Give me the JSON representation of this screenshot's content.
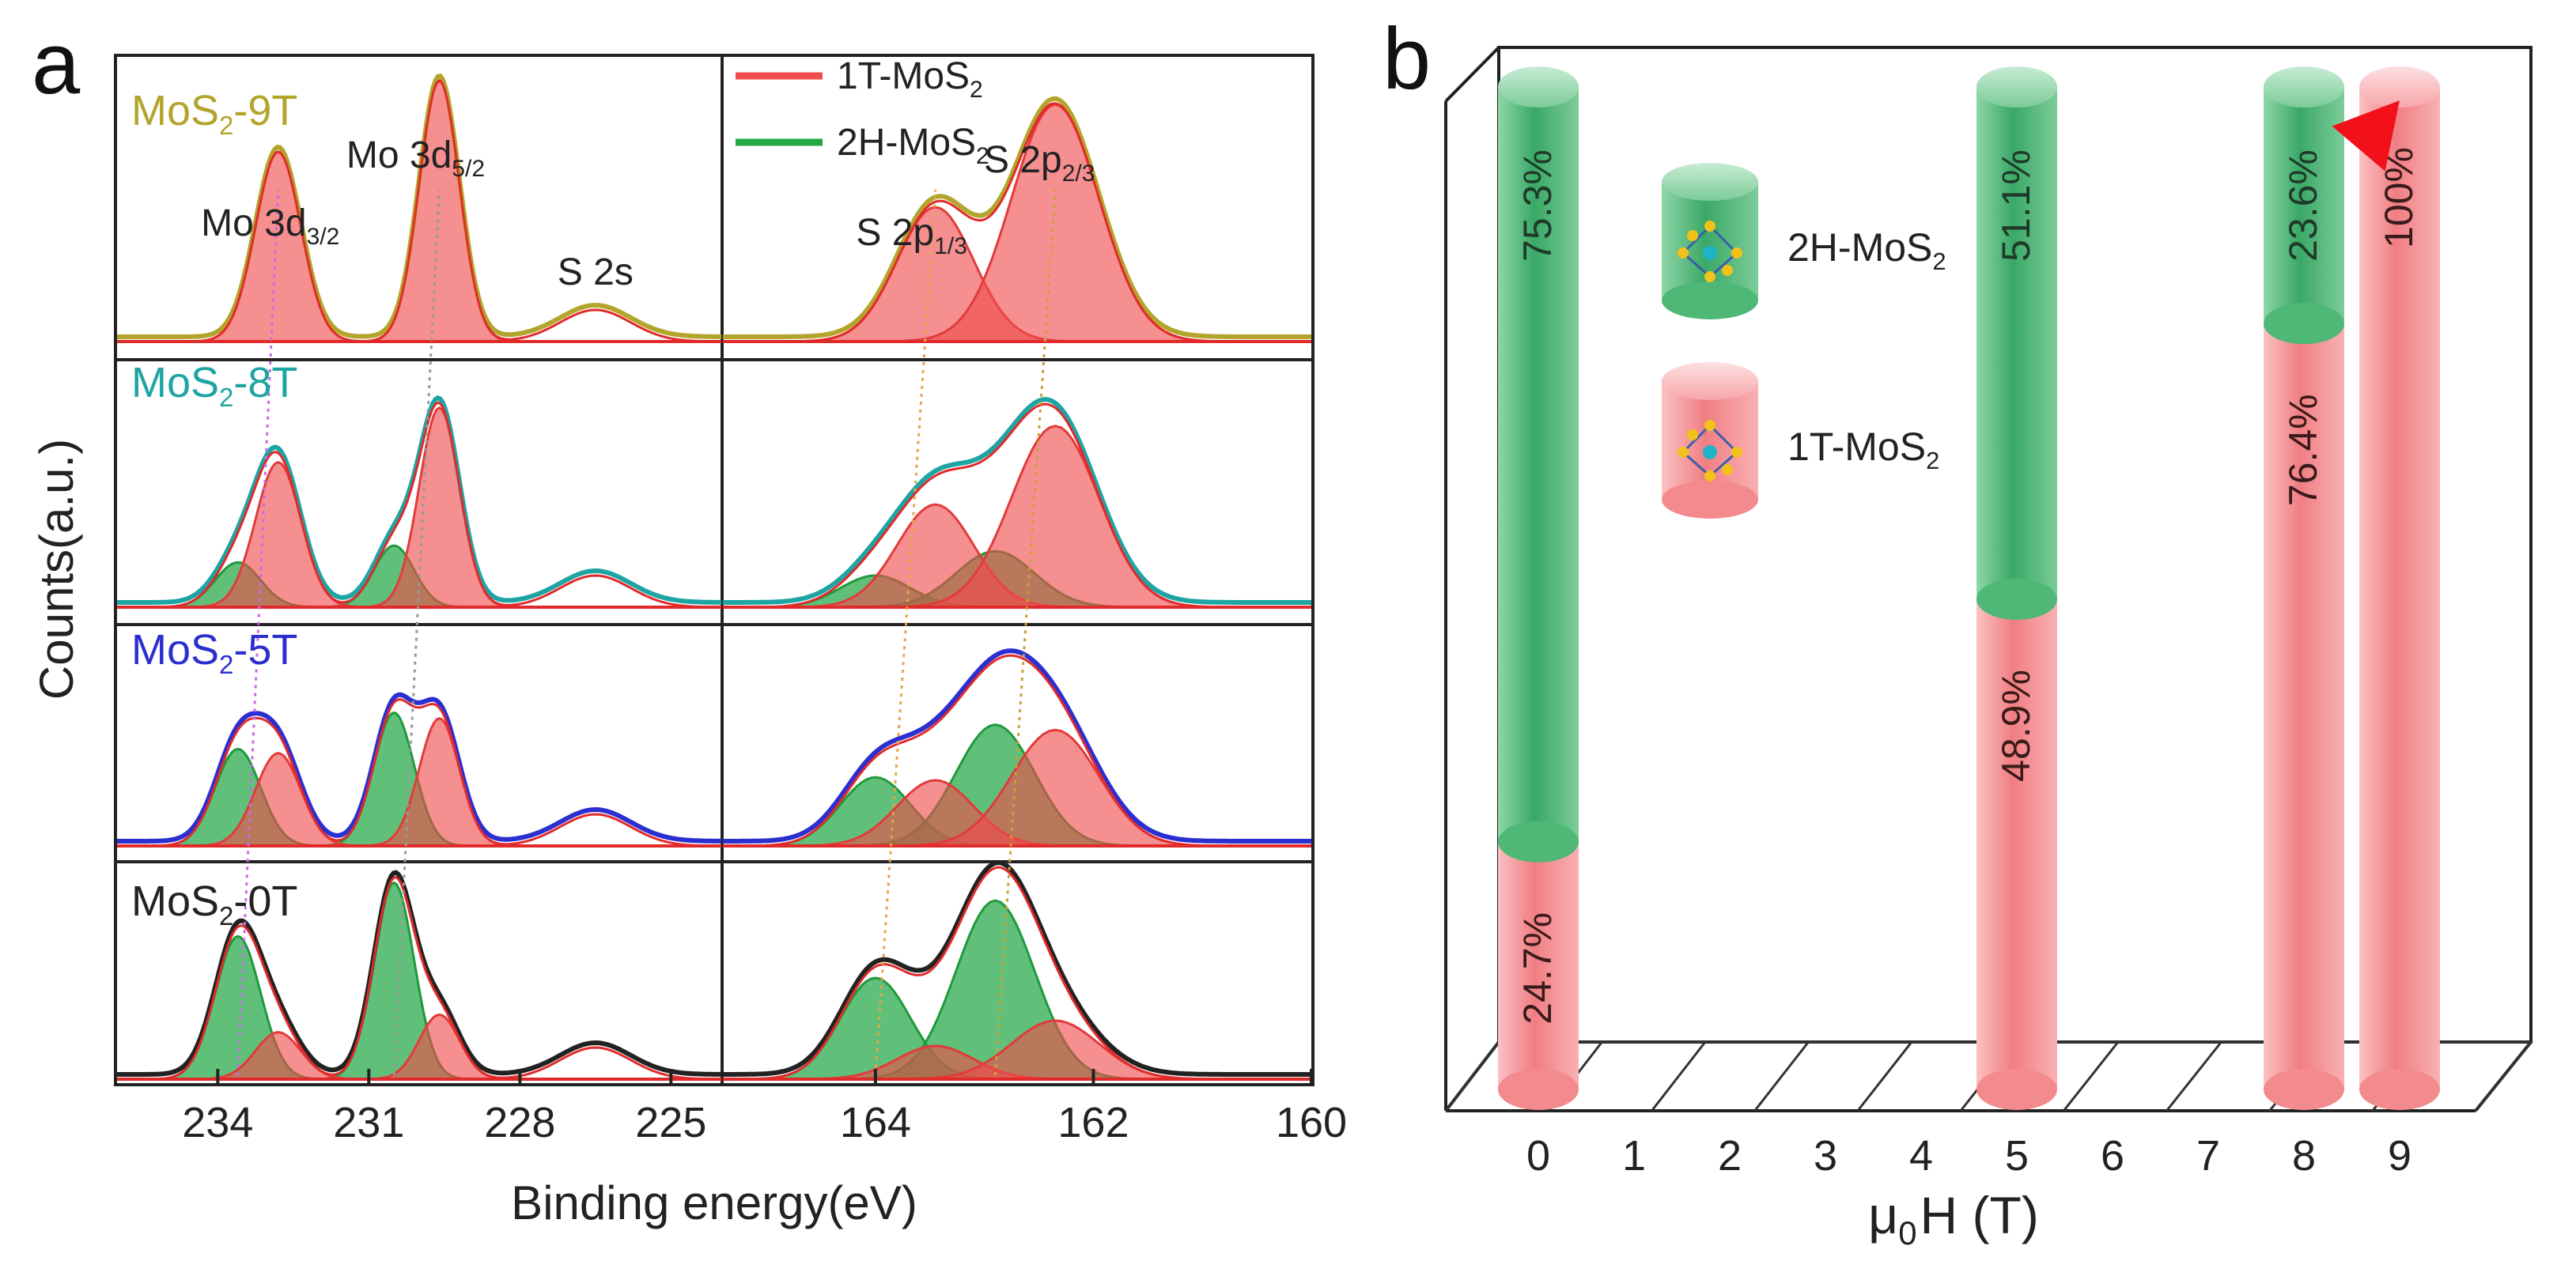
{
  "panel_a_label": "a",
  "panel_b_label": "b",
  "chart_data": [
    {
      "type": "line",
      "title": "",
      "panel": "a",
      "xlabel": "Binding energy(eV)",
      "ylabel": "Counts(a.u.)",
      "mo_xtick_labels": [
        "234",
        "231",
        "228",
        "225"
      ],
      "s_xtick_labels": [
        "164",
        "162",
        "160"
      ],
      "mo_xlim": [
        236,
        224
      ],
      "s_xlim": [
        165.4,
        160
      ],
      "legend": [
        {
          "name": "1T-MoS",
          "sub": "2",
          "color": "#f04a4a"
        },
        {
          "name": "2H-MoS",
          "sub": "2",
          "color": "#22a845"
        }
      ],
      "peak_annotations": [
        {
          "text": "Mo 3d",
          "sub": "3/2"
        },
        {
          "text": "Mo 3d",
          "sub": "5/2"
        },
        {
          "text": "S 2s",
          "sub": ""
        },
        {
          "text": "S 2p",
          "sub": "1/3"
        },
        {
          "text": "S 2p",
          "sub": "2/3"
        }
      ],
      "series": [
        {
          "name": "MoS",
          "sub": "2",
          "suffix": "-9T",
          "color": "#b3a52c",
          "fraction_1T": 1.0
        },
        {
          "name": "MoS",
          "sub": "2",
          "suffix": "-8T",
          "color": "#1fa4a4",
          "fraction_1T": 0.764
        },
        {
          "name": "MoS",
          "sub": "2",
          "suffix": "-5T",
          "color": "#2b2fd0",
          "fraction_1T": 0.489
        },
        {
          "name": "MoS",
          "sub": "2",
          "suffix": "-0T",
          "color": "#222222",
          "fraction_1T": 0.247
        }
      ],
      "peaks_1T": {
        "mo32": 232.8,
        "mo52": 229.6,
        "s2s": 226.5,
        "s2p1": 163.45,
        "s2p2": 162.35
      },
      "peaks_2H": {
        "mo32": 233.6,
        "mo52": 230.5,
        "s2s": 226.5,
        "s2p1": 164.0,
        "s2p2": 162.9
      }
    },
    {
      "type": "bar",
      "panel": "b",
      "title": "",
      "xlabel": "μ",
      "xlabel_sub": "0",
      "xlabel_rest": "H (T)",
      "categories": [
        "0",
        "1",
        "2",
        "3",
        "4",
        "5",
        "6",
        "7",
        "8",
        "9"
      ],
      "series": [
        {
          "name": "2H-MoS",
          "sub": "2",
          "color": "#4fb877",
          "values": [
            75.3,
            null,
            null,
            null,
            null,
            51.1,
            null,
            null,
            23.6,
            0
          ]
        },
        {
          "name": "1T-MoS",
          "sub": "2",
          "color": "#f4878a",
          "values": [
            24.7,
            null,
            null,
            null,
            null,
            48.9,
            null,
            null,
            76.4,
            100
          ]
        }
      ],
      "bars": [
        {
          "field": 0,
          "pct_2H": 75.3,
          "pct_1T": 24.7,
          "label_2H": "75.3%",
          "label_1T": "24.7%"
        },
        {
          "field": 5,
          "pct_2H": 51.1,
          "pct_1T": 48.9,
          "label_2H": "51.1%",
          "label_1T": "48.9%"
        },
        {
          "field": 8,
          "pct_2H": 23.6,
          "pct_1T": 76.4,
          "label_2H": "23.6%",
          "label_1T": "76.4%"
        },
        {
          "field": 9,
          "pct_2H": 0,
          "pct_1T": 100,
          "label_2H": "",
          "label_1T": "100%"
        }
      ],
      "ylim": [
        0,
        100
      ],
      "annotation": "arrow showing 1T phase fraction increases with magnetic field"
    }
  ]
}
